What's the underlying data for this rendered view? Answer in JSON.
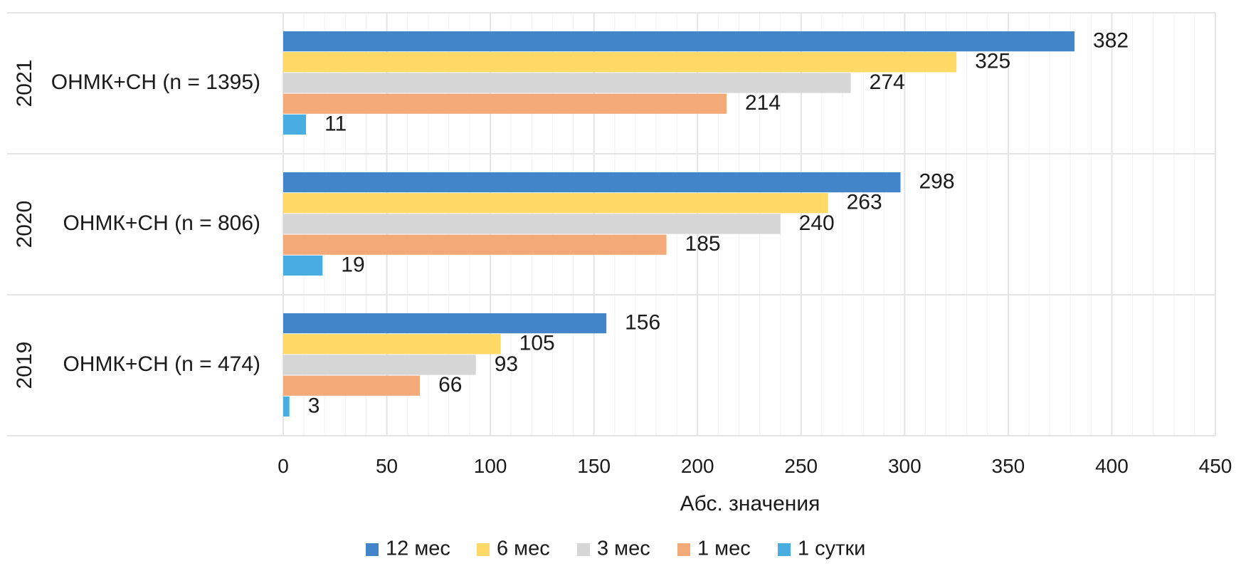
{
  "chart_data": {
    "type": "bar",
    "orientation": "horizontal",
    "xlabel": "Абс. значения",
    "xlim": [
      0,
      450
    ],
    "xticks": [
      "0",
      "50",
      "100",
      "150",
      "200",
      "250",
      "300",
      "350",
      "400",
      "450"
    ],
    "grid": true,
    "legend_position": "bottom",
    "groups": [
      {
        "year": "2021",
        "label": "ОНМК+СН (n = 1395)"
      },
      {
        "year": "2020",
        "label": "ОНМК+СН (n = 806)"
      },
      {
        "year": "2019",
        "label": "ОНМК+СН (n = 474)"
      }
    ],
    "series": [
      {
        "name": "12 мес",
        "color": "#4285C8",
        "values": [
          382,
          298,
          156
        ]
      },
      {
        "name": "6 мес",
        "color": "#FFD966",
        "values": [
          325,
          263,
          105
        ]
      },
      {
        "name": "3 мес",
        "color": "#D6D6D6",
        "values": [
          274,
          240,
          93
        ]
      },
      {
        "name": "1 мес",
        "color": "#F4A978",
        "values": [
          214,
          185,
          66
        ]
      },
      {
        "name": "1 сутки",
        "color": "#4AADE2",
        "values": [
          11,
          19,
          3
        ]
      }
    ]
  }
}
